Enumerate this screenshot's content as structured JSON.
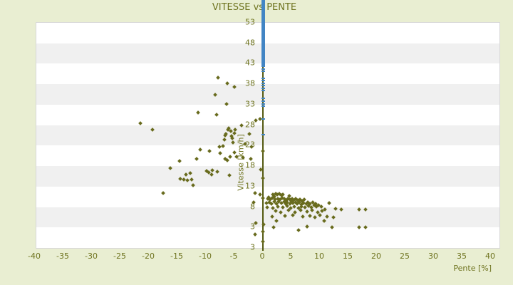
{
  "title": "VITESSE vs PENTE",
  "colors": {
    "background": "#e9eed2",
    "plot_background": "#ffffff",
    "band_gray": "#f0f0f0",
    "plot_border": "#d8d8d8",
    "text_olive": "#6f7420",
    "point_olive": "#686b1d",
    "axis_line_olive": "#555a12",
    "zero_line_blue": "#4285c4"
  },
  "chart_data": {
    "type": "scatter",
    "title": "VITESSE vs PENTE",
    "xlabel": "Pente [%]",
    "ylabel": "Vitesse [km/h]",
    "x_tick_labels": [
      "-40",
      "-35",
      "-30",
      "-25",
      "-20",
      "-15",
      "-10",
      "-5",
      "0",
      "5",
      "10",
      "15",
      "20",
      "25",
      "30",
      "35",
      "40"
    ],
    "x_tick_values": [
      -40,
      -35,
      -30,
      -25,
      -20,
      -15,
      -10,
      -5,
      0,
      5,
      10,
      15,
      20,
      25,
      30,
      35,
      40
    ],
    "y_tick_labels": [
      "53",
      "48",
      "43",
      "38",
      "33",
      "28",
      "23",
      "18",
      "13",
      "8",
      "3",
      "3"
    ],
    "xlim": [
      -40,
      41.4
    ],
    "ylim": [
      -2,
      53
    ],
    "grid": "horizontal-bands-alternating",
    "legend": "none",
    "series": [
      {
        "name": "vitesse-vs-pente",
        "marker": "diamond",
        "color": "#686b1d",
        "points": [
          [
            -21.5,
            28.3
          ],
          [
            -19.4,
            26.8
          ],
          [
            -17.5,
            11.3
          ],
          [
            -16.3,
            17.3
          ],
          [
            -14.6,
            19.0
          ],
          [
            -14.5,
            14.7
          ],
          [
            -13.9,
            14.6
          ],
          [
            -13.5,
            15.8
          ],
          [
            -13.3,
            14.4
          ],
          [
            -12.8,
            16.1
          ],
          [
            -12.5,
            14.6
          ],
          [
            -12.3,
            13.2
          ],
          [
            -11.6,
            19.6
          ],
          [
            -11.4,
            30.9
          ],
          [
            -11.0,
            21.8
          ],
          [
            -9.9,
            16.6
          ],
          [
            -9.5,
            16.3
          ],
          [
            -9.4,
            21.5
          ],
          [
            -9.0,
            15.8
          ],
          [
            -8.9,
            16.8
          ],
          [
            -8.4,
            35.2
          ],
          [
            -8.1,
            30.4
          ],
          [
            -8.0,
            16.4
          ],
          [
            -7.9,
            39.4
          ],
          [
            -7.6,
            22.5
          ],
          [
            -7.5,
            20.9
          ],
          [
            -7.0,
            22.7
          ],
          [
            -6.8,
            24.2
          ],
          [
            -6.6,
            25.4
          ],
          [
            -6.6,
            19.6
          ],
          [
            -6.5,
            25.6
          ],
          [
            -6.4,
            33.0
          ],
          [
            -6.3,
            38.0
          ],
          [
            -6.3,
            19.2
          ],
          [
            -6.1,
            26.8
          ],
          [
            -6.0,
            27.1
          ],
          [
            -5.9,
            15.6
          ],
          [
            -5.8,
            20.1
          ],
          [
            -5.6,
            26.3
          ],
          [
            -5.5,
            25.1
          ],
          [
            -5.4,
            24.7
          ],
          [
            -5.3,
            23.5
          ],
          [
            -5.0,
            37.1
          ],
          [
            -5.0,
            25.9
          ],
          [
            -5.0,
            21.1
          ],
          [
            -4.9,
            26.8
          ],
          [
            -4.6,
            20.1
          ],
          [
            -3.8,
            27.8
          ],
          [
            -3.5,
            19.9
          ],
          [
            -3.1,
            23.2
          ],
          [
            -2.4,
            25.6
          ],
          [
            -2.1,
            19.6
          ],
          [
            -2.0,
            22.5
          ],
          [
            -1.6,
            9.0
          ],
          [
            -1.4,
            11.3
          ],
          [
            -1.3,
            29.0
          ],
          [
            -0.5,
            29.4
          ],
          [
            -0.5,
            10.9
          ],
          [
            -0.4,
            17.0
          ],
          [
            0.0,
            21.5
          ],
          [
            0.0,
            14.9
          ],
          [
            0.0,
            10.0
          ],
          [
            0.0,
            1.8
          ],
          [
            0.0,
            -0.6
          ],
          [
            -1.2,
            4.0
          ],
          [
            0.1,
            3.6
          ],
          [
            1.9,
            2.9
          ],
          [
            -1.4,
            1.2
          ],
          [
            6.3,
            2.2
          ],
          [
            7.8,
            3.0
          ],
          [
            12.1,
            2.9
          ],
          [
            16.9,
            2.8
          ],
          [
            18.0,
            2.8
          ],
          [
            1.8,
            10.9
          ],
          [
            2.3,
            11.1
          ],
          [
            2.5,
            10.8
          ],
          [
            2.9,
            11.0
          ],
          [
            3.2,
            10.7
          ],
          [
            3.5,
            10.9
          ],
          [
            4.6,
            10.6
          ],
          [
            2.0,
            10.3
          ],
          [
            1.0,
            10.1
          ],
          [
            0.9,
            9.8
          ],
          [
            1.3,
            9.6
          ],
          [
            1.6,
            10.0
          ],
          [
            2.1,
            9.7
          ],
          [
            2.6,
            9.9
          ],
          [
            3.0,
            9.6
          ],
          [
            3.4,
            10.0
          ],
          [
            3.8,
            9.8
          ],
          [
            4.1,
            9.5
          ],
          [
            4.4,
            9.9
          ],
          [
            4.8,
            9.6
          ],
          [
            5.1,
            9.9
          ],
          [
            5.4,
            9.5
          ],
          [
            5.8,
            9.8
          ],
          [
            6.1,
            9.5
          ],
          [
            6.5,
            9.7
          ],
          [
            6.9,
            9.4
          ],
          [
            7.3,
            9.6
          ],
          [
            0.6,
            8.8
          ],
          [
            1.1,
            9.0
          ],
          [
            1.5,
            8.6
          ],
          [
            2.0,
            9.2
          ],
          [
            2.4,
            8.7
          ],
          [
            2.8,
            9.1
          ],
          [
            3.3,
            8.8
          ],
          [
            3.7,
            9.2
          ],
          [
            4.0,
            8.6
          ],
          [
            4.3,
            9.0
          ],
          [
            4.7,
            8.7
          ],
          [
            5.0,
            9.1
          ],
          [
            5.3,
            8.8
          ],
          [
            5.7,
            9.0
          ],
          [
            6.0,
            8.6
          ],
          [
            6.4,
            8.9
          ],
          [
            6.7,
            8.5
          ],
          [
            7.1,
            8.8
          ],
          [
            7.6,
            8.6
          ],
          [
            7.9,
            9.0
          ],
          [
            8.3,
            8.7
          ],
          [
            8.8,
            8.9
          ],
          [
            9.2,
            8.6
          ],
          [
            0.8,
            7.8
          ],
          [
            1.7,
            7.6
          ],
          [
            2.6,
            8.0
          ],
          [
            3.5,
            7.7
          ],
          [
            4.2,
            8.1
          ],
          [
            4.9,
            7.5
          ],
          [
            5.5,
            7.9
          ],
          [
            6.2,
            7.6
          ],
          [
            6.8,
            8.0
          ],
          [
            7.4,
            7.7
          ],
          [
            8.0,
            8.1
          ],
          [
            8.5,
            7.8
          ],
          [
            9.0,
            8.2
          ],
          [
            9.4,
            7.9
          ],
          [
            9.8,
            8.3
          ],
          [
            10.2,
            8.0
          ],
          [
            2.2,
            6.8
          ],
          [
            3.1,
            6.5
          ],
          [
            4.5,
            7.0
          ],
          [
            5.6,
            6.6
          ],
          [
            6.6,
            7.1
          ],
          [
            7.7,
            6.7
          ],
          [
            8.6,
            7.0
          ],
          [
            9.6,
            6.6
          ],
          [
            10.4,
            6.9
          ],
          [
            10.9,
            7.2
          ],
          [
            3.9,
            5.6
          ],
          [
            5.2,
            5.9
          ],
          [
            7.0,
            5.4
          ],
          [
            8.2,
            5.7
          ],
          [
            9.1,
            5.3
          ],
          [
            10.0,
            5.8
          ],
          [
            11.2,
            5.5
          ],
          [
            1.6,
            5.4
          ],
          [
            2.4,
            4.5
          ],
          [
            11.6,
            8.8
          ],
          [
            12.8,
            7.4
          ],
          [
            13.8,
            7.2
          ],
          [
            12.4,
            5.3
          ],
          [
            10.7,
            4.4
          ],
          [
            16.9,
            7.2
          ],
          [
            18.0,
            7.2
          ]
        ]
      },
      {
        "name": "zero-pente-column",
        "marker": "dash",
        "color": "#4285c4",
        "pente": 0,
        "solid_vitesse_range": {
          "from": 42,
          "to": 58.3
        },
        "sparse_vitesse": [
          41.5,
          41.0,
          39.2,
          38.7,
          38.0,
          37.5,
          36.8,
          36.3,
          34.4,
          33.7,
          33.0,
          32.5,
          29.3,
          25.5
        ]
      }
    ]
  }
}
